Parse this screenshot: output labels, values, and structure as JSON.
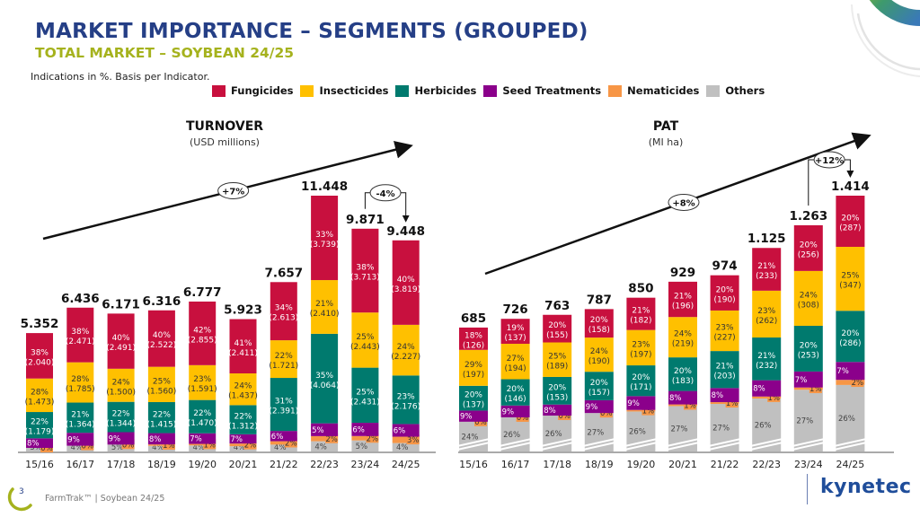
{
  "header": {
    "title": "MARKET IMPORTANCE – SEGMENTS (GROUPED)",
    "subtitle": "TOTAL MARKET – SOYBEAN 24/25",
    "note": "Indications in %. Basis per Indicator."
  },
  "legend": [
    {
      "label": "Fungicides",
      "color": "#c8103e"
    },
    {
      "label": "Insecticides",
      "color": "#ffc000"
    },
    {
      "label": "Herbicides",
      "color": "#007a6e"
    },
    {
      "label": "Seed Treatments",
      "color": "#8b008b"
    },
    {
      "label": "Nematicides",
      "color": "#f79646"
    },
    {
      "label": "Others",
      "color": "#c0c0c0"
    }
  ],
  "chart_data": [
    {
      "type": "bar",
      "stacked": true,
      "title": "TURNOVER",
      "subtitle": "(USD millions)",
      "categories": [
        "15/16",
        "16/17",
        "17/18",
        "18/19",
        "19/20",
        "20/21",
        "21/22",
        "22/23",
        "23/24",
        "24/25"
      ],
      "totals": [
        "5.352",
        "6.436",
        "6.171",
        "6.316",
        "6.777",
        "5.923",
        "7.657",
        "11.448",
        "9.871",
        "9.448"
      ],
      "total_values": [
        5352,
        6436,
        6171,
        6316,
        6777,
        5923,
        7657,
        11448,
        9871,
        9448
      ],
      "series": [
        {
          "name": "Others",
          "pct": [
            3,
            4,
            5,
            4,
            4,
            4,
            4,
            4,
            5,
            4
          ]
        },
        {
          "name": "Nematicides",
          "pct": [
            0,
            0,
            0,
            1,
            1,
            2,
            2,
            2,
            2,
            3
          ]
        },
        {
          "name": "Seed Treatments",
          "pct": [
            8,
            9,
            9,
            8,
            7,
            7,
            6,
            5,
            6,
            6
          ]
        },
        {
          "name": "Herbicides",
          "pct": [
            22,
            21,
            22,
            22,
            22,
            22,
            31,
            35,
            25,
            23
          ],
          "values": [
            "1.179",
            "1.364",
            "1.344",
            "1.415",
            "1.470",
            "1.312",
            "2.391",
            "4.064",
            "2.431",
            "2.176"
          ]
        },
        {
          "name": "Insecticides",
          "pct": [
            28,
            28,
            24,
            25,
            23,
            24,
            22,
            21,
            25,
            24
          ],
          "values": [
            "1.473",
            "1.785",
            "1.500",
            "1.560",
            "1.591",
            "1.437",
            "1.721",
            "2.410",
            "2.443",
            "2.227"
          ]
        },
        {
          "name": "Fungicides",
          "pct": [
            38,
            38,
            40,
            40,
            42,
            41,
            34,
            33,
            38,
            40
          ],
          "values": [
            "2.040",
            "2.471",
            "2.491",
            "2.522",
            "2.855",
            "2.411",
            "2.613",
            "3.739",
            "3.713",
            "3.819"
          ]
        }
      ],
      "trend_label": "+7%",
      "change_label": "-4%",
      "change_from": "23/24",
      "change_to": "24/25",
      "axis_break": false
    },
    {
      "type": "bar",
      "stacked": true,
      "title": "PAT",
      "subtitle": "(MI ha)",
      "categories": [
        "15/16",
        "16/17",
        "17/18",
        "18/19",
        "19/20",
        "20/21",
        "21/22",
        "22/23",
        "23/24",
        "24/25"
      ],
      "totals": [
        "685",
        "726",
        "763",
        "787",
        "850",
        "929",
        "974",
        "1.125",
        "1.263",
        "1.414"
      ],
      "total_values": [
        685,
        726,
        763,
        787,
        850,
        929,
        974,
        1125,
        1263,
        1414
      ],
      "series": [
        {
          "name": "Others",
          "pct": [
            24,
            26,
            26,
            27,
            26,
            27,
            27,
            26,
            27,
            26
          ]
        },
        {
          "name": "Nematicides",
          "pct": [
            0,
            0,
            0,
            0,
            1,
            1,
            1,
            1,
            1,
            2
          ]
        },
        {
          "name": "Seed Treatments",
          "pct": [
            9,
            9,
            8,
            9,
            9,
            8,
            8,
            8,
            7,
            7
          ]
        },
        {
          "name": "Herbicides",
          "pct": [
            20,
            20,
            20,
            20,
            20,
            20,
            21,
            21,
            20,
            20
          ],
          "values": [
            "137",
            "146",
            "153",
            "157",
            "171",
            "183",
            "203",
            "232",
            "253",
            "286"
          ]
        },
        {
          "name": "Insecticides",
          "pct": [
            29,
            27,
            25,
            24,
            23,
            24,
            23,
            23,
            24,
            25
          ],
          "values": [
            "197",
            "194",
            "189",
            "190",
            "197",
            "219",
            "227",
            "262",
            "308",
            "347"
          ]
        },
        {
          "name": "Fungicides",
          "pct": [
            18,
            19,
            20,
            20,
            21,
            21,
            20,
            21,
            20,
            20
          ],
          "values": [
            "126",
            "137",
            "155",
            "158",
            "182",
            "196",
            "190",
            "233",
            "256",
            "287"
          ]
        }
      ],
      "trend_label": "+8%",
      "change_label": "+12%",
      "change_from": "23/24",
      "change_to": "24/25",
      "axis_break": true
    }
  ],
  "footer": {
    "page_number": "3",
    "text": "FarmTrak™ | Soybean 24/25",
    "brand": "kynetec"
  }
}
